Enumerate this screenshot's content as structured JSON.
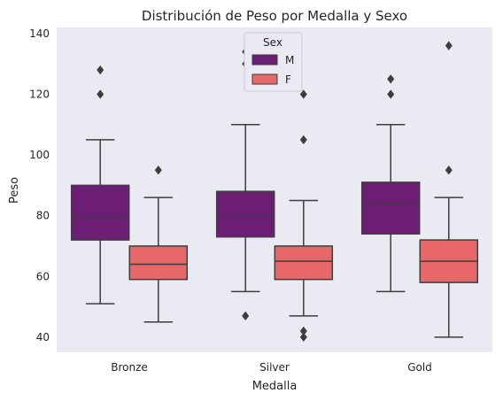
{
  "chart_data": {
    "type": "box",
    "title": "Distribución de Peso por Medalla y Sexo",
    "xlabel": "Medalla",
    "ylabel": "Peso",
    "categories": [
      "Bronze",
      "Silver",
      "Gold"
    ],
    "ylim": [
      35,
      142
    ],
    "yticks": [
      40,
      60,
      80,
      100,
      120,
      140
    ],
    "grid": false,
    "background": "#eaeaf2",
    "legend": {
      "title": "Sex",
      "placement": "top-center"
    },
    "series": [
      {
        "name": "M",
        "color": "#6b1e74",
        "boxes": [
          {
            "whisker_low": 51,
            "q1": 72,
            "median": 79.5,
            "q3": 90,
            "whisker_high": 105,
            "outliers": [
              120,
              128
            ]
          },
          {
            "whisker_low": 55,
            "q1": 73,
            "median": 80,
            "q3": 88,
            "whisker_high": 110,
            "outliers": [
              47,
              130,
              134
            ]
          },
          {
            "whisker_low": 55,
            "q1": 74,
            "median": 84,
            "q3": 91,
            "whisker_high": 110,
            "outliers": [
              120,
              125
            ]
          }
        ]
      },
      {
        "name": "F",
        "color": "#e8686a",
        "boxes": [
          {
            "whisker_low": 45,
            "q1": 59,
            "median": 64,
            "q3": 70,
            "whisker_high": 86,
            "outliers": [
              95
            ]
          },
          {
            "whisker_low": 47,
            "q1": 59,
            "median": 65,
            "q3": 70,
            "whisker_high": 85,
            "outliers": [
              40,
              42,
              105,
              120
            ]
          },
          {
            "whisker_low": 40,
            "q1": 58,
            "median": 65,
            "q3": 72,
            "whisker_high": 86,
            "outliers": [
              95,
              136
            ]
          }
        ]
      }
    ]
  }
}
